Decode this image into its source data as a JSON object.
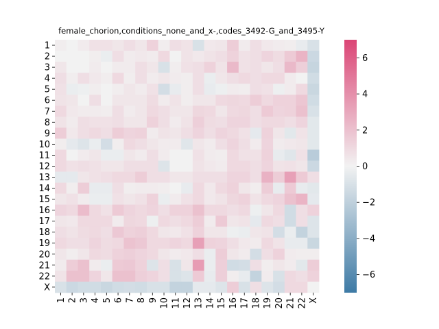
{
  "chart_data": {
    "type": "heatmap",
    "title": "female_chorion,conditions_none_and_x-,codes_3492-G_and_3495-Y",
    "xlabel": "",
    "ylabel": "",
    "row_labels": [
      "1",
      "2",
      "3",
      "4",
      "5",
      "6",
      "7",
      "8",
      "9",
      "10",
      "11",
      "12",
      "13",
      "14",
      "15",
      "16",
      "17",
      "18",
      "19",
      "20",
      "21",
      "22",
      "X"
    ],
    "col_labels": [
      "1",
      "2",
      "3",
      "4",
      "5",
      "6",
      "7",
      "8",
      "9",
      "10",
      "11",
      "12",
      "13",
      "14",
      "15",
      "16",
      "17",
      "18",
      "19",
      "20",
      "21",
      "22",
      "X"
    ],
    "colorbar": {
      "vmin": -7,
      "vmax": 7,
      "ticks": [
        -6,
        -4,
        -2,
        0,
        2,
        4,
        6
      ],
      "tick_labels": [
        "−6",
        "−4",
        "−2",
        "0",
        "2",
        "4",
        "6"
      ],
      "low_color": "#3d7aa5",
      "mid_color": "#f2f2f2",
      "high_color": "#db4575"
    },
    "values": [
      [
        0.2,
        0.0,
        0.3,
        0.7,
        0.7,
        0.5,
        0.8,
        0.5,
        1.3,
        0.2,
        0.8,
        0.6,
        -1.0,
        0.4,
        0.5,
        1.5,
        0.3,
        0.8,
        0.4,
        0.3,
        0.2,
        -0.4,
        -1.0
      ],
      [
        0.0,
        0.0,
        0.0,
        0.2,
        -0.3,
        0.8,
        0.3,
        0.4,
        0.3,
        1.0,
        0.0,
        0.6,
        0.4,
        0.6,
        0.8,
        1.3,
        0.7,
        0.8,
        1.2,
        0.9,
        1.6,
        2.5,
        -1.5
      ],
      [
        0.5,
        0.0,
        0.0,
        0.3,
        0.0,
        0.3,
        0.3,
        0.8,
        0.5,
        -1.0,
        0.2,
        0.7,
        0.8,
        1.3,
        0.6,
        2.3,
        0.7,
        0.8,
        0.5,
        0.8,
        2.3,
        1.4,
        -1.7
      ],
      [
        0.8,
        0.2,
        0.8,
        0.4,
        0.2,
        1.0,
        0.2,
        0.8,
        0.3,
        0.5,
        0.3,
        0.2,
        0.8,
        -0.3,
        0.5,
        0.8,
        1.0,
        0.8,
        1.0,
        1.0,
        0.3,
        0.0,
        -1.3
      ],
      [
        0.7,
        -0.3,
        -0.2,
        0.2,
        0.0,
        0.2,
        0.5,
        0.3,
        0.7,
        -1.2,
        -0.4,
        0.2,
        0.8,
        -0.4,
        -0.2,
        0.3,
        0.2,
        0.8,
        0.7,
        -0.2,
        0.3,
        1.0,
        -1.6
      ],
      [
        0.6,
        0.5,
        0.0,
        0.8,
        0.0,
        0.5,
        0.5,
        0.5,
        0.9,
        0.3,
        0.6,
        0.2,
        0.5,
        0.5,
        1.0,
        1.1,
        1.0,
        1.5,
        1.0,
        1.3,
        1.3,
        1.8,
        -1.3
      ],
      [
        1.0,
        0.4,
        0.3,
        0.3,
        0.2,
        0.8,
        0.3,
        0.5,
        1.0,
        0.8,
        0.5,
        0.5,
        1.1,
        1.0,
        0.5,
        1.0,
        1.1,
        0.8,
        1.6,
        1.2,
        1.3,
        2.0,
        -1.0
      ],
      [
        0.6,
        0.3,
        0.8,
        0.7,
        0.7,
        0.8,
        0.5,
        0.5,
        1.3,
        0.8,
        0.3,
        0.6,
        1.4,
        0.9,
        0.8,
        1.2,
        1.2,
        0.8,
        1.0,
        1.0,
        0.8,
        1.2,
        -0.6
      ],
      [
        1.5,
        0.4,
        0.8,
        1.0,
        0.8,
        1.5,
        1.2,
        1.3,
        0.3,
        0.6,
        0.5,
        0.8,
        1.2,
        0.8,
        1.2,
        1.0,
        0.7,
        -0.5,
        1.3,
        0.5,
        -0.6,
        0.6,
        -0.6
      ],
      [
        0.2,
        -0.5,
        -0.8,
        -0.3,
        -1.2,
        0.2,
        1.0,
        0.8,
        0.5,
        0.3,
        0.3,
        -0.7,
        0.5,
        0.3,
        0.8,
        1.2,
        0.8,
        0.3,
        1.2,
        0.3,
        0.4,
        0.5,
        -0.6
      ],
      [
        1.0,
        0.0,
        0.3,
        0.5,
        -0.3,
        -0.3,
        0.5,
        0.3,
        0.8,
        0.3,
        0.0,
        0.0,
        0.7,
        0.3,
        0.2,
        1.0,
        0.7,
        0.7,
        1.3,
        -0.4,
        -0.7,
        0.7,
        -2.2
      ],
      [
        1.0,
        0.7,
        0.8,
        0.7,
        0.5,
        0.5,
        0.8,
        0.8,
        0.8,
        -0.8,
        0.0,
        0.0,
        0.6,
        0.4,
        0.3,
        1.0,
        1.0,
        0.8,
        1.2,
        0.6,
        0.7,
        0.5,
        -1.5
      ],
      [
        -0.5,
        -0.5,
        0.5,
        0.7,
        0.8,
        1.0,
        1.0,
        1.5,
        0.8,
        0.8,
        0.5,
        0.5,
        0.8,
        0.8,
        0.8,
        1.2,
        1.2,
        0.8,
        2.6,
        1.5,
        3.3,
        1.6,
        0.8
      ],
      [
        1.0,
        0.2,
        1.5,
        -0.4,
        -0.4,
        0.8,
        0.2,
        0.3,
        0.3,
        0.2,
        0.0,
        -0.4,
        1.0,
        0.4,
        1.0,
        1.3,
        0.5,
        0.2,
        1.5,
        -0.4,
        1.6,
        -0.4,
        -0.6
      ],
      [
        0.5,
        0.7,
        0.3,
        -0.3,
        -0.3,
        0.7,
        0.5,
        0.7,
        1.3,
        -0.3,
        0.3,
        0.7,
        1.0,
        0.4,
        0.6,
        1.1,
        1.3,
        0.6,
        1.0,
        1.2,
        2.0,
        2.5,
        -0.5
      ],
      [
        1.2,
        1.0,
        2.2,
        1.0,
        0.7,
        1.6,
        1.2,
        1.0,
        1.2,
        0.8,
        1.3,
        1.3,
        2.0,
        1.0,
        1.0,
        0.8,
        1.0,
        -0.2,
        0.5,
        1.0,
        -1.3,
        0.8,
        1.3
      ],
      [
        0.5,
        0.4,
        1.0,
        1.0,
        1.0,
        0.3,
        1.1,
        1.0,
        -0.2,
        1.0,
        0.8,
        1.0,
        1.5,
        0.3,
        1.6,
        0.5,
        0.6,
        -0.5,
        1.0,
        0.8,
        -1.3,
        0.8,
        -0.8
      ],
      [
        0.8,
        0.6,
        0.9,
        1.0,
        0.8,
        1.7,
        1.3,
        1.4,
        1.0,
        0.5,
        0.4,
        0.7,
        1.3,
        0.5,
        0.5,
        -0.2,
        -0.3,
        0.5,
        0.6,
        -1.2,
        -0.3,
        -1.8,
        -0.8
      ],
      [
        1.0,
        0.8,
        0.8,
        1.2,
        0.9,
        1.0,
        1.9,
        1.7,
        1.0,
        1.0,
        1.2,
        1.0,
        3.3,
        1.3,
        1.2,
        0.8,
        0.4,
        0.3,
        1.0,
        0.6,
        -0.4,
        -0.4,
        -1.6
      ],
      [
        0.5,
        0.2,
        0.5,
        1.0,
        0.9,
        1.3,
        1.4,
        1.2,
        1.0,
        0.5,
        0.3,
        0.4,
        0.8,
        -0.3,
        1.5,
        0.5,
        0.3,
        -1.2,
        0.8,
        1.3,
        0.3,
        0.2,
        0.2
      ],
      [
        0.3,
        1.5,
        2.0,
        0.3,
        -0.3,
        1.6,
        1.7,
        1.3,
        -0.8,
        0.8,
        -1.0,
        0.5,
        3.5,
        -0.3,
        1.4,
        -1.3,
        -1.2,
        0.8,
        0.2,
        0.5,
        0.3,
        -0.6,
        1.5
      ],
      [
        0.6,
        2.0,
        2.0,
        1.2,
        0.5,
        2.0,
        2.0,
        1.4,
        1.2,
        0.8,
        -1.0,
        -0.8,
        1.6,
        -0.4,
        1.4,
        0.2,
        -0.4,
        -1.8,
        0.3,
        -1.0,
        1.0,
        0.8,
        1.3
      ],
      [
        -1.0,
        -1.5,
        -1.3,
        -1.3,
        -1.6,
        -1.3,
        -1.2,
        -1.3,
        -1.0,
        -1.0,
        -1.8,
        -1.8,
        -0.5,
        -0.5,
        -0.8,
        1.5,
        -1.0,
        0.8,
        -0.8,
        -1.2,
        1.0,
        1.0,
        0.0
      ]
    ]
  }
}
